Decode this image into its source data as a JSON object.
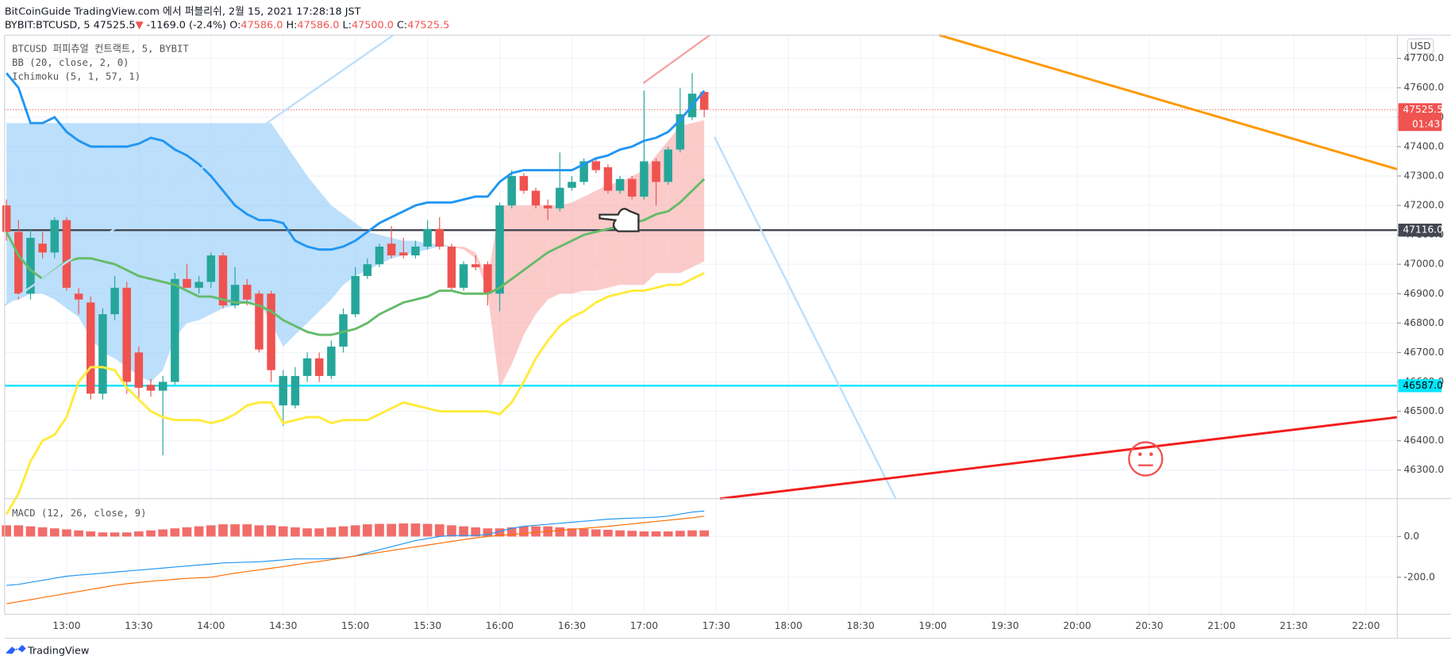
{
  "header": {
    "line1": "BitCoinGuide TradingView.com 에서 퍼블리쉬, 2월 15, 2021 17:28:18 JST",
    "symbol": "BYBIT:BTCUSD, 5",
    "price": "47525.5",
    "arrow": "▼",
    "change": "-1169.0 (-2.4%)",
    "o_label": "O:",
    "o": "47586.0",
    "h_label": "H:",
    "h": "47586.0",
    "l_label": "L:",
    "l": "47500.0",
    "c_label": "C:",
    "c": "47525.5"
  },
  "footer": "TradingView",
  "chart_data": [
    {
      "type": "candlestick",
      "legend": [
        "BTCUSD 퍼피츄얼 컨트랙트, 5, BYBIT",
        "BB (20, close, 2, 0)",
        "Ichimoku (5, 1, 57, 1)"
      ],
      "currency": "USD",
      "up_color": "#26a69a",
      "down_color": "#ef5350",
      "candles": [
        [
          47200,
          47220,
          47080,
          47110
        ],
        [
          47110,
          47150,
          46880,
          46900
        ],
        [
          46900,
          47120,
          46880,
          47090
        ],
        [
          47070,
          47110,
          47020,
          47040
        ],
        [
          47040,
          47160,
          47020,
          47150
        ],
        [
          47150,
          47160,
          46910,
          46920
        ],
        [
          46900,
          46920,
          46830,
          46880
        ],
        [
          46870,
          46890,
          46540,
          46560
        ],
        [
          46560,
          46850,
          46540,
          46830
        ],
        [
          46830,
          46960,
          46810,
          46920
        ],
        [
          46920,
          46940,
          46560,
          46600
        ],
        [
          46700,
          46720,
          46540,
          46580
        ],
        [
          46590,
          46610,
          46550,
          46570
        ],
        [
          46570,
          46620,
          46350,
          46600
        ],
        [
          46600,
          46970,
          46590,
          46950
        ],
        [
          46950,
          47000,
          46920,
          46920
        ],
        [
          46920,
          46960,
          46900,
          46940
        ],
        [
          46940,
          47040,
          46920,
          47030
        ],
        [
          47030,
          47040,
          46850,
          46860
        ],
        [
          46860,
          46990,
          46850,
          46930
        ],
        [
          46930,
          46950,
          46860,
          46880
        ],
        [
          46900,
          46910,
          46700,
          46710
        ],
        [
          46900,
          46910,
          46600,
          46640
        ],
        [
          46520,
          46640,
          46450,
          46620
        ],
        [
          46520,
          46650,
          46510,
          46620
        ],
        [
          46620,
          46700,
          46600,
          46680
        ],
        [
          46680,
          46700,
          46600,
          46620
        ],
        [
          46620,
          46740,
          46610,
          46720
        ],
        [
          46720,
          46850,
          46700,
          46830
        ],
        [
          46830,
          46990,
          46820,
          46960
        ],
        [
          46960,
          47020,
          46950,
          47000
        ],
        [
          47000,
          47070,
          46990,
          47060
        ],
        [
          47070,
          47130,
          47020,
          47030
        ],
        [
          47040,
          47090,
          47020,
          47030
        ],
        [
          47030,
          47080,
          47020,
          47060
        ],
        [
          47060,
          47150,
          47050,
          47120
        ],
        [
          47120,
          47160,
          47050,
          47060
        ],
        [
          47060,
          47070,
          46910,
          46920
        ],
        [
          46920,
          47010,
          46910,
          47000
        ],
        [
          47000,
          47030,
          46980,
          46990
        ],
        [
          47000,
          47010,
          46860,
          46900
        ],
        [
          46900,
          47210,
          46840,
          47200
        ],
        [
          47200,
          47320,
          47190,
          47300
        ],
        [
          47300,
          47310,
          47240,
          47250
        ],
        [
          47250,
          47260,
          47190,
          47200
        ],
        [
          47200,
          47220,
          47150,
          47190
        ],
        [
          47190,
          47380,
          47180,
          47260
        ],
        [
          47260,
          47300,
          47250,
          47280
        ],
        [
          47280,
          47360,
          47270,
          47350
        ],
        [
          47350,
          47360,
          47310,
          47320
        ],
        [
          47330,
          47340,
          47240,
          47250
        ],
        [
          47250,
          47300,
          47240,
          47290
        ],
        [
          47290,
          47300,
          47220,
          47230
        ],
        [
          47230,
          47590,
          47220,
          47350
        ],
        [
          47350,
          47360,
          47200,
          47280
        ],
        [
          47280,
          47400,
          47270,
          47390
        ],
        [
          47390,
          47600,
          47380,
          47510
        ],
        [
          47500,
          47650,
          47490,
          47580
        ],
        [
          47586,
          47586,
          47500,
          47525.5
        ]
      ],
      "series": [
        {
          "color": "#2196f3",
          "values": [
            47650,
            47600,
            47480,
            47480,
            47500,
            47450,
            47420,
            47400,
            47400,
            47400,
            47400,
            47410,
            47430,
            47420,
            47390,
            47370,
            47340,
            47300,
            47250,
            47200,
            47170,
            47150,
            47150,
            47140,
            47080,
            47060,
            47050,
            47050,
            47060,
            47080,
            47110,
            47140,
            47160,
            47180,
            47200,
            47210,
            47210,
            47210,
            47220,
            47230,
            47230,
            47280,
            47310,
            47320,
            47320,
            47320,
            47320,
            47320,
            47340,
            47360,
            47370,
            47390,
            47400,
            47420,
            47430,
            47450,
            47490,
            47540,
            47590
          ]
        },
        {
          "color": "#66bb6a",
          "values": [
            47110,
            47030,
            46980,
            46950,
            46980,
            47010,
            47020,
            47020,
            47010,
            47000,
            46980,
            46960,
            46950,
            46940,
            46930,
            46910,
            46890,
            46890,
            46880,
            46870,
            46870,
            46860,
            46840,
            46810,
            46790,
            46770,
            46760,
            46760,
            46770,
            46780,
            46800,
            46830,
            46850,
            46870,
            46880,
            46890,
            46910,
            46910,
            46900,
            46900,
            46900,
            46920,
            46950,
            46980,
            47010,
            47040,
            47060,
            47080,
            47100,
            47110,
            47120,
            47130,
            47140,
            47150,
            47170,
            47180,
            47210,
            47250,
            47290
          ]
        },
        {
          "color": "#ffeb3b",
          "values": [
            46150,
            46220,
            46330,
            46400,
            46420,
            46480,
            46600,
            46650,
            46650,
            46640,
            46580,
            46540,
            46500,
            46480,
            46470,
            46470,
            46470,
            46460,
            46470,
            46490,
            46520,
            46530,
            46530,
            46460,
            46470,
            46480,
            46480,
            46460,
            46470,
            46470,
            46470,
            46490,
            46510,
            46530,
            46520,
            46510,
            46500,
            46500,
            46500,
            46500,
            46500,
            46490,
            46530,
            46600,
            46680,
            46740,
            46790,
            46820,
            46840,
            46870,
            46890,
            46900,
            46910,
            46910,
            46920,
            46930,
            46930,
            46950,
            46970
          ]
        }
      ],
      "cloud": {
        "up_color": "#90caf9",
        "down_color": "#f8a9a6",
        "a": [
          47480,
          47480,
          47480,
          47480,
          47480,
          47480,
          47480,
          47480,
          47480,
          47480,
          47480,
          47480,
          47480,
          47480,
          47480,
          47480,
          47480,
          47480,
          47480,
          47480,
          47480,
          47480,
          47480,
          47420,
          47360,
          47300,
          47250,
          47200,
          47170,
          47140,
          47110,
          47100,
          47090,
          47080,
          47080,
          47070,
          47070,
          47060,
          47050,
          47020,
          46900,
          46580,
          46660,
          46760,
          46830,
          46880,
          46900,
          46900,
          46910,
          46910,
          46920,
          46930,
          46930,
          46930,
          46970,
          46970,
          46970,
          46990,
          47010
        ],
        "b": [
          46870,
          46880,
          46900,
          46900,
          46880,
          46850,
          46820,
          46750,
          46700,
          46680,
          46650,
          46620,
          46600,
          46640,
          46750,
          46800,
          46810,
          46830,
          46850,
          46860,
          46870,
          46870,
          46800,
          46720,
          46760,
          46800,
          46840,
          46880,
          46930,
          46960,
          46980,
          47000,
          47020,
          47030,
          47040,
          47050,
          47060,
          47060,
          47060,
          47040,
          46950,
          47200,
          47200,
          47200,
          47200,
          47200,
          47200,
          47210,
          47230,
          47250,
          47270,
          47280,
          47300,
          47320,
          47370,
          47420,
          47470,
          47480,
          47490
        ]
      },
      "ylim": [
        46203,
        47779
      ],
      "yticks": [
        {
          "value": 47700,
          "label": "47700.0"
        },
        {
          "value": 47600,
          "label": "47600.0"
        },
        {
          "value": 47500,
          "label": "47500.0"
        },
        {
          "value": 47400,
          "label": "47400.0"
        },
        {
          "value": 47300,
          "label": "47300.0"
        },
        {
          "value": 47200,
          "label": "47200.0"
        },
        {
          "value": 47100,
          "label": "47100.0"
        },
        {
          "value": 47000,
          "label": "47000.0"
        },
        {
          "value": 46900,
          "label": "46900.0"
        },
        {
          "value": 46800,
          "label": "46800.0"
        },
        {
          "value": 46700,
          "label": "46700.0"
        },
        {
          "value": 46600,
          "label": "46600.0"
        },
        {
          "value": 46500,
          "label": "46500.0"
        },
        {
          "value": 46400,
          "label": "46400.0"
        },
        {
          "value": 46300,
          "label": "46300.0"
        }
      ],
      "levels": [
        {
          "value": 47116,
          "label": "47116.0",
          "color": "#434651"
        },
        {
          "value": 46587,
          "label": "46587.0",
          "color": "#00e5ff"
        }
      ],
      "last_price": {
        "value": 47525.5,
        "label": "47525.5",
        "color": "#ef5350",
        "countdown": "01:43"
      },
      "xticks": [
        "13:00",
        "13:30",
        "14:00",
        "14:30",
        "15:00",
        "15:30",
        "16:00",
        "16:30",
        "17:00",
        "17:30",
        "18:00",
        "18:30",
        "19:00",
        "19:30",
        "20:00",
        "20:30",
        "21:00",
        "21:30",
        "22:00"
      ],
      "grid": true
    },
    {
      "type": "macd",
      "legend": "MACD (12, 26, close, 9)",
      "histogram": {
        "color": "#ef5350",
        "values": [
          55,
          55,
          50,
          45,
          40,
          35,
          30,
          25,
          20,
          20,
          20,
          25,
          30,
          35,
          40,
          45,
          50,
          55,
          60,
          60,
          60,
          55,
          55,
          50,
          45,
          40,
          40,
          45,
          50,
          55,
          60,
          62,
          62,
          64,
          64,
          62,
          60,
          55,
          50,
          45,
          40,
          40,
          45,
          50,
          50,
          50,
          45,
          40,
          38,
          35,
          33,
          30,
          28,
          25,
          25,
          25,
          28,
          30,
          30
        ]
      },
      "series": [
        {
          "color": "#2196f3",
          "values": [
            -240,
            -235,
            -225,
            -215,
            -205,
            -195,
            -190,
            -185,
            -180,
            -175,
            -170,
            -165,
            -160,
            -155,
            -150,
            -145,
            -140,
            -135,
            -130,
            -128,
            -126,
            -124,
            -120,
            -115,
            -110,
            -110,
            -110,
            -108,
            -105,
            -95,
            -80,
            -65,
            -50,
            -35,
            -20,
            -10,
            0,
            5,
            5,
            5,
            10,
            25,
            40,
            50,
            55,
            60,
            65,
            70,
            75,
            80,
            85,
            88,
            90,
            92,
            95,
            100,
            110,
            120,
            125
          ]
        },
        {
          "color": "#ff6d00",
          "values": [
            -330,
            -320,
            -310,
            -300,
            -290,
            -280,
            -270,
            -260,
            -250,
            -240,
            -232,
            -226,
            -220,
            -215,
            -210,
            -206,
            -203,
            -200,
            -190,
            -180,
            -172,
            -164,
            -156,
            -148,
            -139,
            -130,
            -122,
            -114,
            -105,
            -96,
            -87,
            -78,
            -69,
            -60,
            -51,
            -42,
            -33,
            -24,
            -15,
            -7,
            0,
            5,
            10,
            15,
            20,
            25,
            30,
            35,
            40,
            45,
            50,
            56,
            62,
            68,
            74,
            80,
            86,
            92,
            100
          ]
        }
      ],
      "ylim": [
        -382,
        186
      ],
      "yticks": [
        {
          "value": 0,
          "label": "0.0"
        },
        {
          "value": -200,
          "label": "-200.0"
        }
      ]
    }
  ]
}
